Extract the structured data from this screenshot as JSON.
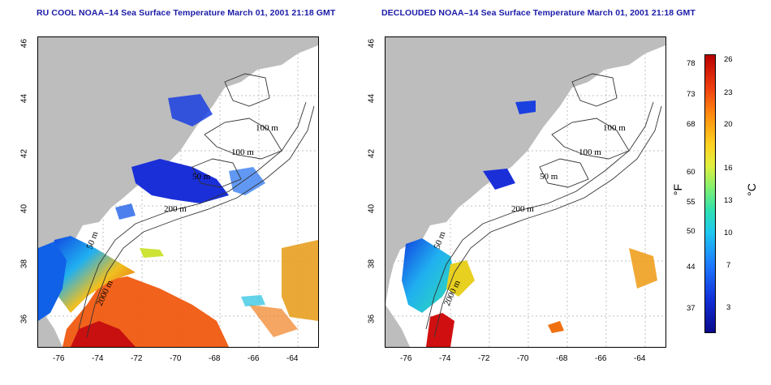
{
  "titles": {
    "left": "RU COOL NOAA–14 Sea Surface Temperature March 01, 2001 21:18 GMT",
    "right": "DECLOUDED NOAA–14 Sea Surface Temperature March 01, 2001 21:18 GMT"
  },
  "axes": {
    "x_ticks": [
      "-76",
      "-74",
      "-72",
      "-70",
      "-68",
      "-66",
      "-64"
    ],
    "y_ticks": [
      "46",
      "44",
      "42",
      "40",
      "38",
      "36"
    ]
  },
  "contours": {
    "left": [
      "100 m",
      "100 m",
      "50 m",
      "200 m",
      "50 m",
      "2000 m"
    ],
    "right": [
      "100 m",
      "100 m",
      "50 m",
      "200 m",
      "50 m",
      "2000 m"
    ]
  },
  "colorbar": {
    "fahrenheit_unit": "°F",
    "celsius_unit": "°C",
    "fahrenheit_ticks": [
      "78",
      "73",
      "68",
      "60",
      "55",
      "50",
      "44",
      "37"
    ],
    "celsius_ticks": [
      "26",
      "23",
      "20",
      "16",
      "13",
      "10",
      "7",
      "3"
    ]
  },
  "colors": {
    "land": "#bdbdbd",
    "title": "#1a1aa8",
    "cold": "#1030d8",
    "warm": "#f05010",
    "hot": "#c80000"
  }
}
